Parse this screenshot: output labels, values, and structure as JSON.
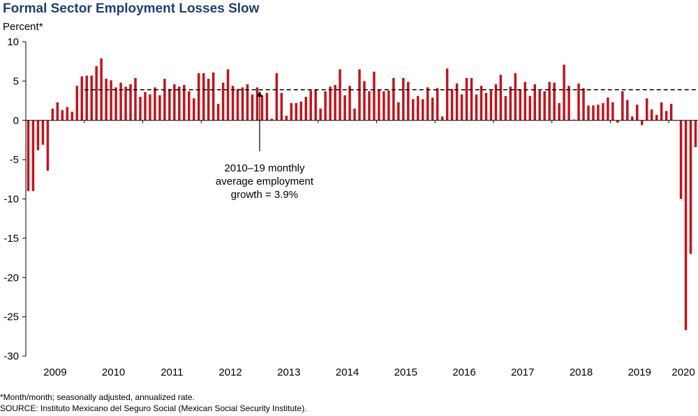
{
  "title": "Formal Sector Employment Losses Slow",
  "ylabel": "Percent*",
  "notes": {
    "note": "*Month/month; seasonally adjusted, annualized rate.",
    "source": "SOURCE: Instituto Mexicano del Seguro Social (Mexican Social Security Institute)."
  },
  "colors": {
    "bar": "#c0141c",
    "average_line": "#000000"
  },
  "chart_data": {
    "type": "bar",
    "title": "Formal Sector Employment Losses Slow",
    "ylabel": "Percent*",
    "xlabel": "",
    "ylim": [
      -30,
      10
    ],
    "yticks": [
      10,
      5,
      0,
      -5,
      -10,
      -15,
      -20,
      -25,
      -30
    ],
    "year_labels": [
      "2009",
      "2010",
      "2011",
      "2012",
      "2013",
      "2014",
      "2015",
      "2016",
      "2017",
      "2018",
      "2019",
      "2020"
    ],
    "grid": false,
    "average_line": {
      "value": 3.9,
      "from": "2010-01",
      "to": "2020-06"
    },
    "annotation": {
      "lines": [
        "2010–19 monthly",
        "average employment",
        "growth = 3.9%"
      ],
      "points_to": "2013-01"
    },
    "dates": [
      "2009-01",
      "2009-02",
      "2009-03",
      "2009-04",
      "2009-05",
      "2009-06",
      "2009-07",
      "2009-08",
      "2009-09",
      "2009-10",
      "2009-11",
      "2009-12",
      "2010-01",
      "2010-02",
      "2010-03",
      "2010-04",
      "2010-05",
      "2010-06",
      "2010-07",
      "2010-08",
      "2010-09",
      "2010-10",
      "2010-11",
      "2010-12",
      "2011-01",
      "2011-02",
      "2011-03",
      "2011-04",
      "2011-05",
      "2011-06",
      "2011-07",
      "2011-08",
      "2011-09",
      "2011-10",
      "2011-11",
      "2011-12",
      "2012-01",
      "2012-02",
      "2012-03",
      "2012-04",
      "2012-05",
      "2012-06",
      "2012-07",
      "2012-08",
      "2012-09",
      "2012-10",
      "2012-11",
      "2012-12",
      "2013-01",
      "2013-02",
      "2013-03",
      "2013-04",
      "2013-05",
      "2013-06",
      "2013-07",
      "2013-08",
      "2013-09",
      "2013-10",
      "2013-11",
      "2013-12",
      "2014-01",
      "2014-02",
      "2014-03",
      "2014-04",
      "2014-05",
      "2014-06",
      "2014-07",
      "2014-08",
      "2014-09",
      "2014-10",
      "2014-11",
      "2014-12",
      "2015-01",
      "2015-02",
      "2015-03",
      "2015-04",
      "2015-05",
      "2015-06",
      "2015-07",
      "2015-08",
      "2015-09",
      "2015-10",
      "2015-11",
      "2015-12",
      "2016-01",
      "2016-02",
      "2016-03",
      "2016-04",
      "2016-05",
      "2016-06",
      "2016-07",
      "2016-08",
      "2016-09",
      "2016-10",
      "2016-11",
      "2016-12",
      "2017-01",
      "2017-02",
      "2017-03",
      "2017-04",
      "2017-05",
      "2017-06",
      "2017-07",
      "2017-08",
      "2017-09",
      "2017-10",
      "2017-11",
      "2017-12",
      "2018-01",
      "2018-02",
      "2018-03",
      "2018-04",
      "2018-05",
      "2018-06",
      "2018-07",
      "2018-08",
      "2018-09",
      "2018-10",
      "2018-11",
      "2018-12",
      "2019-01",
      "2019-02",
      "2019-03",
      "2019-04",
      "2019-05",
      "2019-06",
      "2019-07",
      "2019-08",
      "2019-09",
      "2019-10",
      "2019-11",
      "2019-12",
      "2020-01",
      "2020-02",
      "2020-03",
      "2020-04",
      "2020-05",
      "2020-06"
    ],
    "values": [
      -9.0,
      -9.0,
      -3.8,
      -3.1,
      -6.4,
      1.5,
      2.3,
      1.3,
      1.7,
      1.1,
      4.4,
      5.6,
      5.7,
      5.7,
      6.9,
      7.9,
      5.3,
      5.1,
      4.2,
      4.8,
      4.3,
      4.6,
      5.4,
      3.0,
      3.6,
      3.3,
      4.2,
      3.2,
      5.3,
      4.0,
      4.6,
      4.3,
      4.5,
      3.7,
      2.8,
      6.0,
      6.0,
      5.3,
      6.1,
      2.1,
      4.8,
      6.5,
      4.4,
      4.0,
      4.2,
      4.6,
      3.3,
      4.2,
      3.2,
      3.5,
      0.2,
      6.0,
      3.5,
      0.6,
      2.2,
      2.2,
      2.4,
      3.0,
      3.8,
      3.9,
      1.5,
      3.7,
      4.3,
      4.5,
      6.5,
      3.2,
      4.4,
      1.5,
      6.5,
      5.0,
      3.7,
      6.2,
      3.9,
      3.7,
      3.8,
      5.4,
      2.3,
      5.4,
      4.9,
      2.7,
      3.1,
      2.7,
      4.2,
      2.9,
      4.1,
      0.5,
      6.6,
      4.0,
      4.7,
      3.3,
      5.4,
      5.4,
      3.3,
      4.4,
      3.5,
      3.8,
      4.6,
      5.8,
      3.1,
      4.3,
      6.0,
      3.9,
      4.9,
      3.1,
      4.6,
      3.8,
      3.7,
      4.9,
      4.8,
      2.2,
      7.1,
      4.4,
      0.1,
      4.7,
      4.1,
      1.9,
      1.9,
      2.0,
      2.2,
      2.9,
      2.3,
      -0.3,
      3.7,
      2.6,
      0.5,
      2.0,
      -0.6,
      2.8,
      1.4,
      0.7,
      2.3,
      1.2,
      2.1,
      0.0,
      -10.0,
      -26.7,
      -17.0,
      -3.4
    ]
  }
}
